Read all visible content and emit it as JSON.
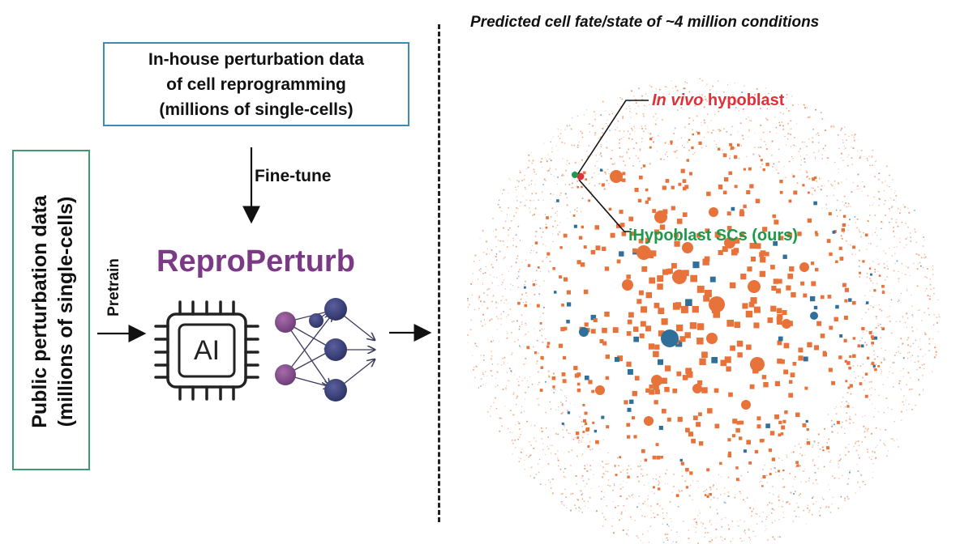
{
  "inhouse_box": {
    "line1": "In-house perturbation data",
    "line2": "of cell reprogramming",
    "line3": "(millions of single-cells)"
  },
  "public_box": {
    "line1": "Public perturbation data",
    "line2": "(millions of single-cells)"
  },
  "arrows": {
    "finetune_label": "Fine-tune",
    "pretrain_label": "Pretrain"
  },
  "model": {
    "name": "ReproPerturb",
    "name_color": "#7b3a86",
    "chip_label": "AI"
  },
  "prediction": {
    "title": "Predicted cell fate/state of ~4 million conditions",
    "invivo_italic": "In vivo",
    "invivo_rest": " hypoblast",
    "invivo_color": "#e0303a",
    "ihypo_label": "iHypoblast SCs (ours)",
    "ihypo_color": "#1c9a4a",
    "dot_color_main": "#e8733a",
    "dot_color_alt": "#2f6f9a"
  }
}
